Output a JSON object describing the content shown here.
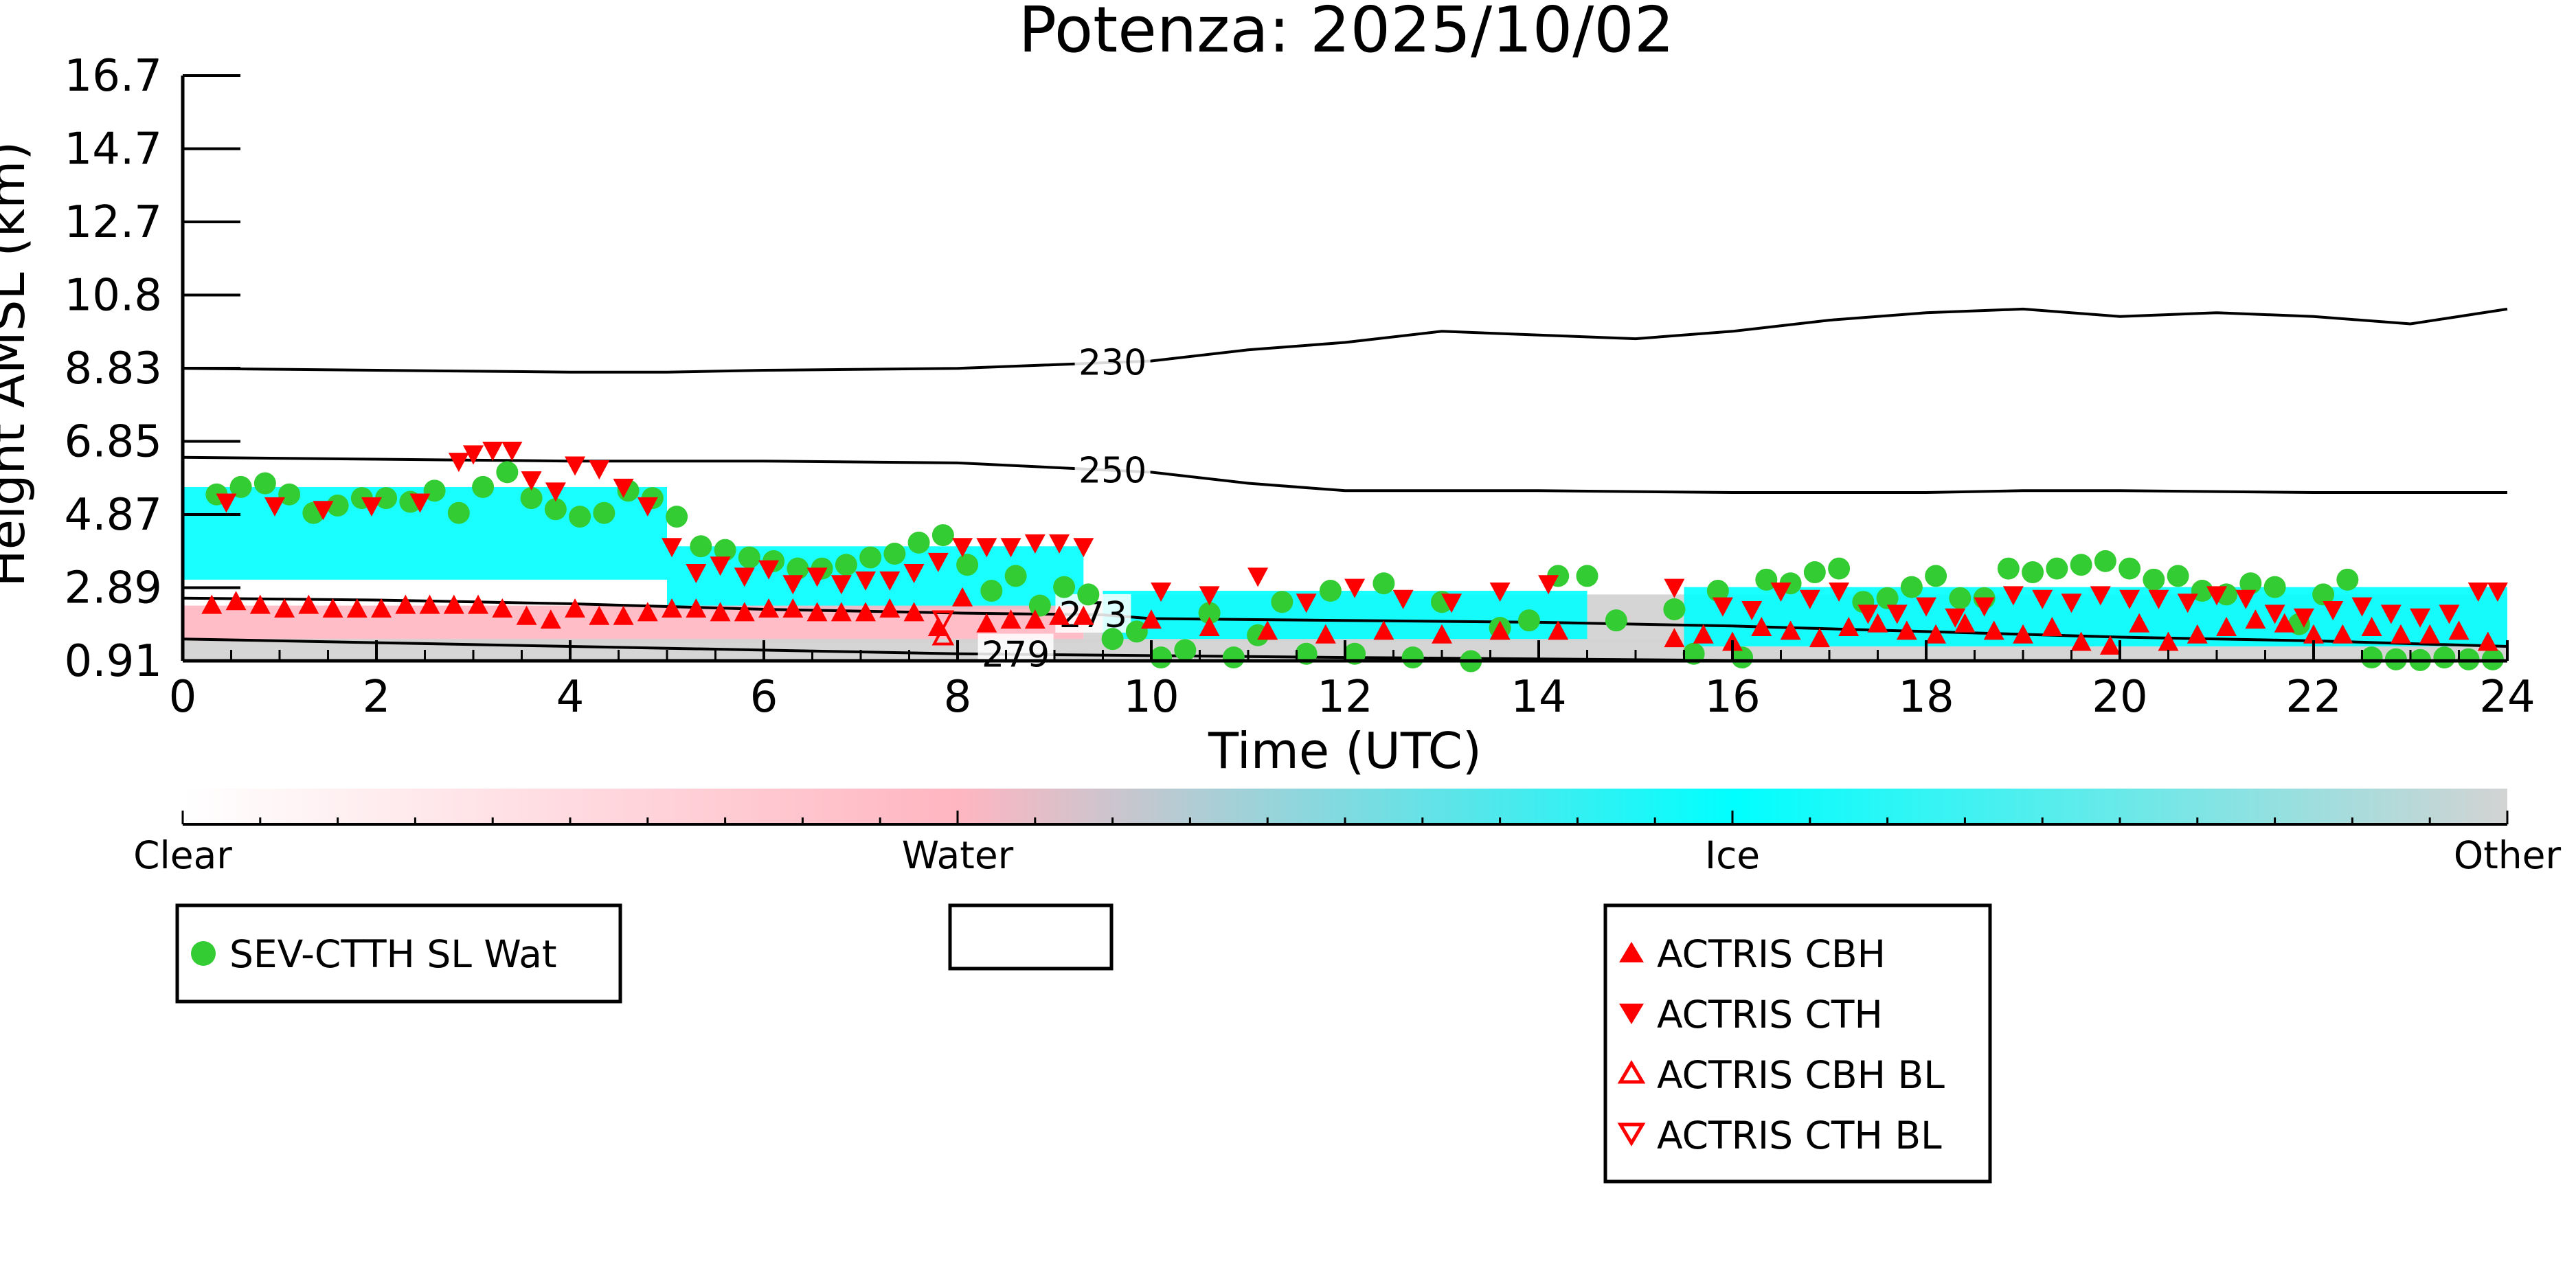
{
  "chart_data": {
    "type": "scatter",
    "title": "Potenza: 2025/10/02",
    "xlabel": "Time (UTC)",
    "ylabel": "Height AMSL (km)",
    "xlim": [
      0,
      24
    ],
    "ylim": [
      0.91,
      16.7
    ],
    "x_ticks": [
      "0",
      "2",
      "4",
      "6",
      "8",
      "10",
      "12",
      "14",
      "16",
      "18",
      "20",
      "22",
      "24"
    ],
    "y_ticks": [
      "0.91",
      "2.89",
      "4.87",
      "6.85",
      "8.83",
      "10.8",
      "12.7",
      "14.7",
      "16.7"
    ],
    "grid": false,
    "colors": {
      "clear": "#ffffff",
      "water": "#ffb6c1",
      "ice": "#00ffff",
      "other": "#d3d3d3",
      "sev_marker": "#33cc33",
      "actris_marker": "#ff0000"
    },
    "colorbar": {
      "labels": [
        "Clear",
        "Water",
        "Ice",
        "Other"
      ]
    },
    "cloud_mask_bands": [
      {
        "class": "ice",
        "x_start": 0.0,
        "x_end": 5.0,
        "y_low": 3.1,
        "y_high": 5.6
      },
      {
        "class": "ice",
        "x_start": 5.0,
        "x_end": 9.3,
        "y_low": 2.3,
        "y_high": 4.0
      },
      {
        "class": "water",
        "x_start": 0.0,
        "x_end": 9.3,
        "y_low": 1.4,
        "y_high": 2.4
      },
      {
        "class": "other",
        "x_start": 0.0,
        "x_end": 24.0,
        "y_low": 0.91,
        "y_high": 1.5
      },
      {
        "class": "other",
        "x_start": 9.3,
        "x_end": 24.0,
        "y_low": 1.4,
        "y_high": 2.7
      },
      {
        "class": "ice",
        "x_start": 9.5,
        "x_end": 14.5,
        "y_low": 1.5,
        "y_high": 2.8
      },
      {
        "class": "ice",
        "x_start": 15.5,
        "x_end": 24.0,
        "y_low": 1.3,
        "y_high": 2.9
      }
    ],
    "contours": [
      {
        "label": "230",
        "label_x": 9.6,
        "x": [
          0,
          2,
          4,
          5,
          6,
          8,
          10,
          11,
          12,
          13,
          14,
          15,
          16,
          17,
          18,
          19,
          20,
          21,
          22,
          23,
          24
        ],
        "y": [
          8.8,
          8.75,
          8.7,
          8.7,
          8.75,
          8.8,
          9.0,
          9.3,
          9.5,
          9.8,
          9.7,
          9.6,
          9.8,
          10.1,
          10.3,
          10.4,
          10.2,
          10.3,
          10.2,
          10.0,
          10.4
        ]
      },
      {
        "label": "250",
        "label_x": 9.6,
        "x": [
          0,
          2,
          4,
          6,
          8,
          10,
          11,
          12,
          14,
          16,
          18,
          19,
          20,
          22,
          24
        ],
        "y": [
          6.4,
          6.35,
          6.3,
          6.3,
          6.25,
          6.0,
          5.7,
          5.5,
          5.5,
          5.45,
          5.45,
          5.5,
          5.5,
          5.45,
          5.45
        ]
      },
      {
        "label": "273",
        "label_x": 9.4,
        "x": [
          0,
          2,
          4,
          6,
          8,
          9.5,
          10,
          12,
          14,
          16,
          18,
          20,
          22,
          24
        ],
        "y": [
          2.6,
          2.55,
          2.45,
          2.3,
          2.2,
          2.15,
          2.05,
          2.0,
          1.95,
          1.85,
          1.7,
          1.55,
          1.45,
          1.3
        ]
      },
      {
        "label": "279",
        "label_x": 8.6,
        "x": [
          0,
          2,
          4,
          6,
          8,
          10,
          12,
          14,
          16
        ],
        "y": [
          1.5,
          1.4,
          1.3,
          1.2,
          1.1,
          1.05,
          1.0,
          0.96,
          0.92
        ]
      }
    ],
    "series": [
      {
        "name": "SEV-CTTH SL Wat",
        "marker": "circle",
        "x": [
          0.35,
          0.6,
          0.85,
          1.1,
          1.35,
          1.6,
          1.85,
          2.1,
          2.35,
          2.6,
          2.85,
          3.1,
          3.35,
          3.6,
          3.85,
          4.1,
          4.35,
          4.6,
          4.85,
          5.1,
          5.35,
          5.6,
          5.85,
          6.1,
          6.35,
          6.6,
          6.85,
          7.1,
          7.35,
          7.6,
          7.85,
          8.1,
          8.35,
          8.6,
          8.85,
          9.1,
          9.35,
          9.6,
          9.85,
          10.1,
          10.35,
          10.6,
          10.85,
          11.1,
          11.35,
          11.6,
          11.85,
          12.1,
          12.4,
          12.7,
          13.0,
          13.3,
          13.6,
          13.9,
          14.2,
          14.5,
          14.8,
          15.4,
          15.6,
          15.85,
          16.1,
          16.35,
          16.6,
          16.85,
          17.1,
          17.35,
          17.6,
          17.85,
          18.1,
          18.35,
          18.6,
          18.85,
          19.1,
          19.35,
          19.6,
          19.85,
          20.1,
          20.35,
          20.6,
          20.85,
          21.1,
          21.35,
          21.6,
          21.85,
          22.1,
          22.35,
          22.6,
          22.85,
          23.1,
          23.35,
          23.6,
          23.85
        ],
        "y": [
          5.4,
          5.6,
          5.7,
          5.4,
          4.9,
          5.1,
          5.3,
          5.3,
          5.2,
          5.5,
          4.9,
          5.6,
          6.0,
          5.3,
          5.0,
          4.8,
          4.9,
          5.5,
          5.3,
          4.8,
          4.0,
          3.9,
          3.7,
          3.6,
          3.4,
          3.4,
          3.5,
          3.7,
          3.8,
          4.1,
          4.3,
          3.5,
          2.8,
          3.2,
          2.4,
          2.9,
          2.7,
          1.5,
          1.7,
          1.0,
          1.2,
          2.2,
          1.0,
          1.6,
          2.5,
          1.1,
          2.8,
          1.1,
          3.0,
          1.0,
          2.5,
          0.9,
          1.8,
          2.0,
          3.2,
          3.2,
          2.0,
          2.3,
          1.1,
          2.8,
          1.0,
          3.1,
          3.0,
          3.3,
          3.4,
          2.5,
          2.6,
          2.9,
          3.2,
          2.6,
          2.6,
          3.4,
          3.3,
          3.4,
          3.5,
          3.6,
          3.4,
          3.1,
          3.2,
          2.8,
          2.7,
          3.0,
          2.9,
          1.9,
          2.7,
          3.1,
          1.0,
          0.95,
          0.93,
          1.0,
          0.95,
          0.95
        ]
      },
      {
        "name": "ACTRIS CBH",
        "marker": "triangle-up",
        "x": [
          0.3,
          0.55,
          0.8,
          1.05,
          1.3,
          1.55,
          1.8,
          2.05,
          2.3,
          2.55,
          2.8,
          3.05,
          3.3,
          3.55,
          3.8,
          4.05,
          4.3,
          4.55,
          4.8,
          5.05,
          5.3,
          5.55,
          5.8,
          6.05,
          6.3,
          6.55,
          6.8,
          7.05,
          7.3,
          7.55,
          7.8,
          8.05,
          8.3,
          8.55,
          8.8,
          9.05,
          9.3,
          10.0,
          10.6,
          11.2,
          11.8,
          12.4,
          13.0,
          13.6,
          14.2,
          15.4,
          15.7,
          16.0,
          16.3,
          16.6,
          16.9,
          17.2,
          17.5,
          17.8,
          18.1,
          18.4,
          18.7,
          19.0,
          19.3,
          19.6,
          19.9,
          20.2,
          20.5,
          20.8,
          21.1,
          21.4,
          21.7,
          22.0,
          22.3,
          22.6,
          22.9,
          23.2,
          23.5,
          23.8
        ],
        "y": [
          2.4,
          2.5,
          2.4,
          2.3,
          2.4,
          2.3,
          2.3,
          2.3,
          2.4,
          2.4,
          2.4,
          2.4,
          2.3,
          2.1,
          2.0,
          2.3,
          2.1,
          2.1,
          2.2,
          2.3,
          2.3,
          2.2,
          2.2,
          2.3,
          2.3,
          2.2,
          2.2,
          2.2,
          2.3,
          2.2,
          1.8,
          2.6,
          1.9,
          2.0,
          2.0,
          2.1,
          2.1,
          2.0,
          1.8,
          1.7,
          1.6,
          1.7,
          1.6,
          1.7,
          1.7,
          1.5,
          1.6,
          1.4,
          1.8,
          1.7,
          1.5,
          1.8,
          1.9,
          1.7,
          1.6,
          1.9,
          1.7,
          1.6,
          1.8,
          1.4,
          1.3,
          1.9,
          1.4,
          1.6,
          1.8,
          2.0,
          1.9,
          1.6,
          1.6,
          1.8,
          1.6,
          1.6,
          1.7,
          1.4
        ]
      },
      {
        "name": "ACTRIS CTH",
        "marker": "triangle-down",
        "x": [
          0.45,
          0.95,
          1.45,
          1.95,
          2.45,
          2.85,
          3.0,
          3.2,
          3.4,
          3.6,
          3.85,
          4.05,
          4.3,
          4.55,
          4.8,
          5.05,
          5.3,
          5.55,
          5.8,
          6.05,
          6.3,
          6.55,
          6.8,
          7.05,
          7.3,
          7.55,
          7.8,
          8.05,
          8.3,
          8.55,
          8.8,
          9.05,
          9.3,
          10.1,
          10.6,
          11.1,
          11.6,
          12.1,
          12.6,
          13.1,
          13.6,
          14.1,
          15.4,
          15.9,
          16.2,
          16.5,
          16.8,
          17.1,
          17.4,
          17.7,
          18.0,
          18.3,
          18.6,
          18.9,
          19.2,
          19.5,
          19.8,
          20.1,
          20.4,
          20.7,
          21.0,
          21.3,
          21.6,
          21.9,
          22.2,
          22.5,
          22.8,
          23.1,
          23.4,
          23.7,
          23.9
        ],
        "y": [
          5.2,
          5.1,
          5.0,
          5.1,
          5.2,
          6.3,
          6.5,
          6.6,
          6.6,
          5.8,
          5.5,
          6.2,
          6.1,
          5.6,
          5.1,
          4.0,
          3.3,
          3.5,
          3.2,
          3.4,
          3.0,
          3.2,
          3.0,
          3.1,
          3.1,
          3.3,
          3.6,
          4.0,
          4.0,
          4.0,
          4.1,
          4.1,
          4.0,
          2.8,
          2.7,
          3.2,
          2.5,
          2.9,
          2.6,
          2.5,
          2.8,
          3.0,
          2.9,
          2.4,
          2.3,
          2.8,
          2.6,
          2.8,
          2.2,
          2.2,
          2.4,
          2.1,
          2.4,
          2.7,
          2.6,
          2.5,
          2.7,
          2.6,
          2.6,
          2.5,
          2.7,
          2.6,
          2.2,
          2.1,
          2.3,
          2.4,
          2.2,
          2.1,
          2.2,
          2.8,
          2.8
        ]
      },
      {
        "name": "ACTRIS CBH BL",
        "marker": "triangle-up-open",
        "x": [
          7.85
        ],
        "y": [
          1.55
        ]
      },
      {
        "name": "ACTRIS CTH BL",
        "marker": "triangle-down-open",
        "x": [
          7.85
        ],
        "y": [
          2.05
        ]
      }
    ]
  }
}
